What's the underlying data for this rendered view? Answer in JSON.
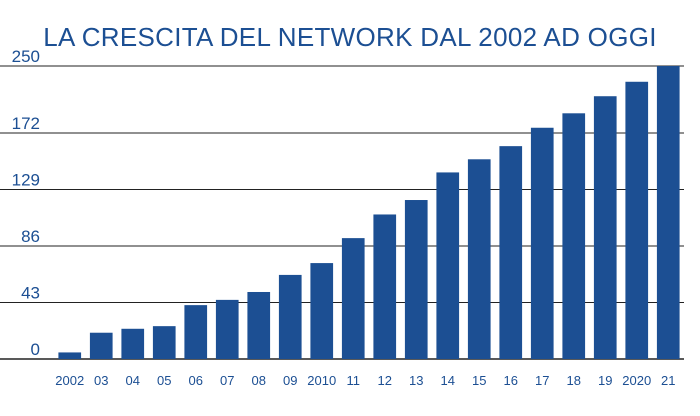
{
  "chart_data": {
    "type": "bar",
    "title": "LA CRESCITA DEL NETWORK DAL 2002 AD OGGI",
    "xlabel": "",
    "ylabel": "",
    "categories": [
      "2002",
      "03",
      "04",
      "05",
      "06",
      "07",
      "08",
      "09",
      "2010",
      "11",
      "12",
      "13",
      "14",
      "15",
      "16",
      "17",
      "18",
      "19",
      "2020",
      "21"
    ],
    "values": [
      5,
      20,
      23,
      25,
      41,
      45,
      51,
      64,
      73,
      92,
      110,
      121,
      142,
      152,
      162,
      176,
      187,
      200,
      211,
      223
    ],
    "y_ticks": [
      0,
      43,
      86,
      129,
      172,
      250
    ],
    "y_tick_labels": [
      "0",
      "43",
      "86",
      "129",
      "172",
      "250"
    ],
    "ylim": [
      0,
      223
    ],
    "grid": true,
    "bar_color": "#1c4f93",
    "grid_color": "#222222",
    "text_color": "#1c4f93"
  }
}
